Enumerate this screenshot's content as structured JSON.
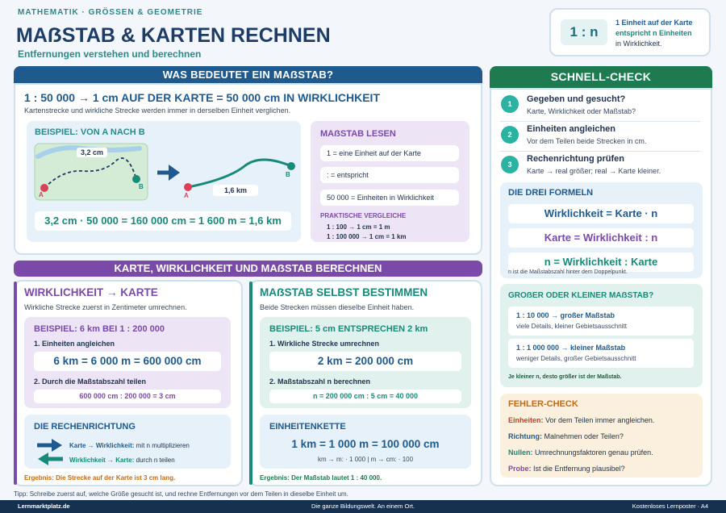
{
  "header": {
    "kicker": "MATHEMATIK · GRÖSSEN & GEOMETRIE",
    "title": "MAẞSTAB & KARTEN RECHNEN",
    "subtitle": "Entfernungen verstehen und berechnen",
    "ratio": "1 : n",
    "ratio_l1": "1 Einheit auf der Karte",
    "ratio_l2": "entspricht n Einheiten",
    "ratio_l3": "in Wirklichkeit."
  },
  "what": {
    "bar": "WAS BEDEUTET EIN MAẞSTAB?",
    "headline": "1 : 50 000 → 1 cm AUF DER KARTE = 50 000 cm IN WIRKLICHKEIT",
    "desc": "Kartenstrecke und wirkliche Strecke werden immer in derselben Einheit verglichen.",
    "example_title": "BEISPIEL: VON A NACH B",
    "map_distance": "3,2 cm",
    "real_distance": "1,6 km",
    "point_a": "A",
    "point_b": "B",
    "formula": "3,2 cm · 50 000 = 160 000 cm = 1 600 m = 1,6 km",
    "read_title": "MAẞSTAB LESEN",
    "read_items": [
      "1 = eine Einheit auf der Karte",
      ": = entspricht",
      "50 000 = Einheiten in Wirklichkeit"
    ],
    "compare_title": "PRAKTISCHE VERGLEICHE",
    "compare_1": "1 : 100   → 1 cm = 1 m",
    "compare_2": "1 : 100 000   → 1 cm = 1 km"
  },
  "calc": {
    "bar": "KARTE, WIRKLICHKEIT UND MAẞSTAB BERECHNEN",
    "left": {
      "title": "WIRKLICHKEIT → KARTE",
      "desc": "Wirkliche Strecke zuerst in Zentimeter umrechnen.",
      "example": "BEISPIEL: 6 km BEI 1 : 200 000",
      "step1": "1. Einheiten angleichen",
      "eq1": "6 km = 6 000 m = 600 000 cm",
      "step2": "2. Durch die Maßstabszahl teilen",
      "eq2": "600 000 cm : 200 000 = 3 cm",
      "dir_title": "DIE RECHENRICHTUNG",
      "dir1_bold": "Karte → Wirklichkeit:",
      "dir1_text": " mit n multiplizieren",
      "dir2_bold": "Wirklichkeit → Karte:",
      "dir2_text": " durch n teilen",
      "result": "Ergebnis: Die Strecke auf der Karte ist 3 cm lang."
    },
    "right": {
      "title": "MAẞSTAB SELBST BESTIMMEN",
      "desc": "Beide Strecken müssen dieselbe Einheit haben.",
      "example": "BEISPIEL: 5 cm ENTSPRECHEN 2 km",
      "step1": "1. Wirkliche Strecke umrechnen",
      "eq1": "2 km = 200 000 cm",
      "step2": "2. Maßstabszahl n berechnen",
      "eq2": "n = 200 000 cm : 5 cm = 40 000",
      "chain_title": "EINHEITENKETTE",
      "chain": "1 km = 1 000 m = 100 000 cm",
      "chain_sub": "km → m: · 1 000 | m → cm: · 100",
      "result": "Ergebnis: Der Maßstab lautet 1 : 40 000."
    }
  },
  "check": {
    "bar": "SCHNELL-CHECK",
    "steps": [
      {
        "num": "1",
        "title": "Gegeben und gesucht?",
        "text": "Karte, Wirklichkeit oder Maßstab?"
      },
      {
        "num": "2",
        "title": "Einheiten angleichen",
        "text": "Vor dem Teilen beide Strecken in cm."
      },
      {
        "num": "3",
        "title": "Rechenrichtung prüfen",
        "text": "Karte → real größer; real → Karte kleiner."
      }
    ],
    "formulas_title": "DIE DREI FORMELN",
    "formulas": [
      "Wirklichkeit = Karte · n",
      "Karte = Wirklichkeit : n",
      "n = Wirklichkeit : Karte"
    ],
    "formulas_note": "n ist die Maßstabszahl hinter dem Doppelpunkt.",
    "size_title": "GROẞER ODER KLEINER MAẞSTAB?",
    "size_items": [
      {
        "title": "1 : 10 000 → großer Maßstab",
        "text": "viele Details, kleiner Gebietsausschnitt"
      },
      {
        "title": "1 : 1 000 000 → kleiner Maßstab",
        "text": "weniger Details, großer Gebietsausschnitt"
      }
    ],
    "size_note": "Je kleiner n, desto größer ist der Maßstab.",
    "errors_title": "FEHLER-CHECK",
    "errors": [
      {
        "label": "Einheiten:",
        "text": " Vor dem Teilen immer angleichen."
      },
      {
        "label": "Richtung:",
        "text": " Malnehmen oder Teilen?"
      },
      {
        "label": "Nullen:",
        "text": " Umrechnungsfaktoren genau prüfen."
      },
      {
        "label": "Probe:",
        "text": " Ist die Entfernung plausibel?"
      }
    ]
  },
  "tip": "Tipp: Schreibe zuerst auf, welche Größe gesucht ist, und rechne Entfernungen vor dem Teilen in dieselbe Einheit um.",
  "footer": {
    "left": "Lernmarktplatz.de",
    "center": "Die ganze Bildungswelt. An einem Ort.",
    "right": "Kostenloses Lernposter · A4"
  },
  "colors": {
    "navy": "#1f5a8f",
    "purple": "#7b4aa8",
    "green": "#1e7a4f",
    "teal": "#178a7a",
    "orange": "#c46a10"
  }
}
